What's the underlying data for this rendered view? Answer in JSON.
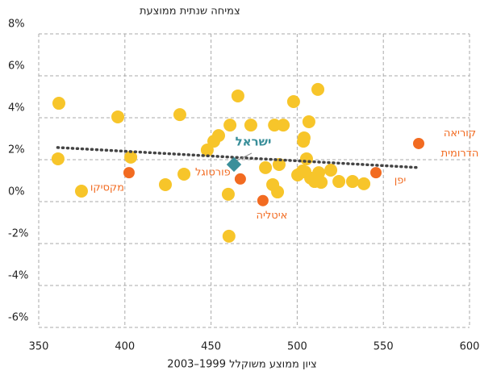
{
  "chart_data": {
    "type": "scatter",
    "y_label": "צמיחה שנתית ממוצעת",
    "x_label": "ציון ממוצע משוקלל 1999–2003",
    "xlim": [
      350,
      600
    ],
    "xticks": [
      350,
      400,
      450,
      500,
      550,
      600
    ],
    "ylim": [
      -6,
      8
    ],
    "yticks": [
      {
        "value": -6,
        "label": "-6%"
      },
      {
        "value": -4,
        "label": "-4%"
      },
      {
        "value": -2,
        "label": "-2%"
      },
      {
        "value": 0,
        "label": "0%"
      },
      {
        "value": 2,
        "label": "2%"
      },
      {
        "value": 4,
        "label": "4%"
      },
      {
        "value": 6,
        "label": "6%"
      },
      {
        "value": 8,
        "label": "8%"
      }
    ],
    "grid": true,
    "series": [
      {
        "color": "#f7c52a",
        "x": [
          361.7,
          361.2,
          374.8,
          395.9,
          403.4,
          423.5,
          431.9,
          434.3,
          447.8,
          451.6,
          454.4,
          461,
          465.6,
          460,
          460.4,
          473.1,
          481.6,
          485.8,
          486.8,
          489.5,
          488.6,
          491.9,
          497.9,
          500.3,
          503.6,
          504,
          506.8,
          505.4,
          512,
          504.5,
          507.8,
          510.1,
          512.5,
          513.9,
          519.5,
          524.2,
          532.1,
          538.7,
          503.1
        ],
        "y": [
          4.69,
          2.04,
          0.5,
          4.04,
          2.12,
          0.81,
          4.15,
          1.31,
          2.46,
          2.88,
          3.15,
          3.65,
          5.04,
          0.35,
          -1.65,
          3.65,
          1.62,
          0.81,
          3.65,
          1.77,
          0.46,
          3.65,
          4.77,
          1.27,
          2.88,
          3.04,
          3.81,
          2.04,
          5.35,
          1.42,
          1.12,
          0.96,
          1.38,
          0.92,
          1.5,
          0.96,
          0.96,
          0.85,
          1.46
        ]
      }
    ],
    "labeled_points": [
      {
        "name": "ישראל",
        "x": 463.3,
        "y": 1.77,
        "color": "#3a8f9a",
        "marker": "diamond"
      },
      {
        "name": "פורטוגל",
        "x": 467,
        "y": 1.08,
        "color": "#f26b21",
        "marker": "circle"
      },
      {
        "name": "מקסיקו",
        "x": 402.4,
        "y": 1.38,
        "color": "#f26b21",
        "marker": "circle"
      },
      {
        "name": "איטליה",
        "x": 480.1,
        "y": 0.05,
        "color": "#f26b21",
        "marker": "circle"
      },
      {
        "name": "יפן",
        "x": 545.7,
        "y": 1.38,
        "color": "#f26b21",
        "marker": "circle"
      },
      {
        "name": "קוריאה הדרומית",
        "x": 570.5,
        "y": 2.77,
        "color": "#f26b21",
        "marker": "circle"
      }
    ],
    "trend": {
      "color": "#444",
      "x": [
        361,
        571
      ],
      "y": [
        2.58,
        1.62
      ]
    }
  }
}
